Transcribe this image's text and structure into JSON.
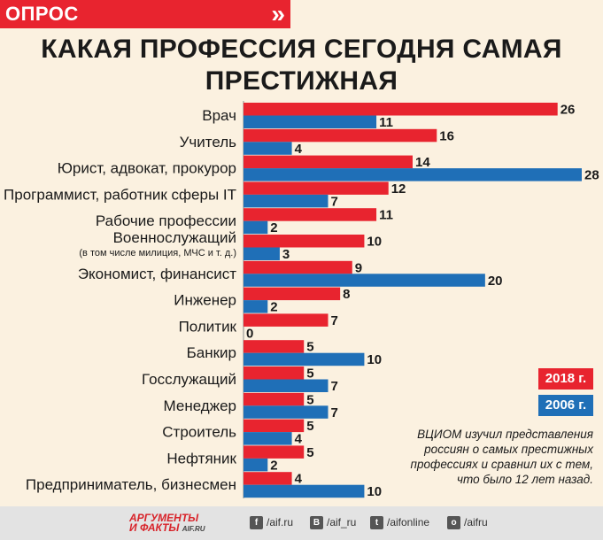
{
  "header": {
    "badge_label": "ОПРОС",
    "badge_arrow": "»"
  },
  "title_lines": [
    "КАКАЯ ПРОФЕССИЯ СЕГОДНЯ САМАЯ",
    "ПРЕСТИЖНАЯ"
  ],
  "legend": {
    "series_2018": "2018 г.",
    "series_2006": "2006 г."
  },
  "note": [
    "ВЦИОМ изучил представления",
    "россиян о самых престижных",
    "профессиях и сравнил их с тем,",
    "что было 12 лет назад."
  ],
  "footer": {
    "logo_line1": "АРГУМЕНТЫ",
    "logo_line2": "И ФАКТЫ",
    "logo_site": "AIF.RU",
    "links": [
      {
        "icon": "facebook-icon",
        "glyph": "f",
        "text": "/aif.ru"
      },
      {
        "icon": "vk-icon",
        "glyph": "В",
        "text": "/aif_ru"
      },
      {
        "icon": "twitter-icon",
        "glyph": "t",
        "text": "/aifonline"
      },
      {
        "icon": "odnoklassniki-icon",
        "glyph": "о",
        "text": "/aifru"
      }
    ]
  },
  "colors": {
    "red": "#e8242f",
    "blue": "#1f6fb7",
    "background": "#fbf1e0"
  },
  "chart_data": {
    "type": "bar",
    "orientation": "horizontal",
    "categories": [
      "Врач",
      "Учитель",
      "Юрист, адвокат, прокурор",
      "Программист, работник сферы IT",
      "Рабочие профессии",
      "Военнослужащий",
      "Экономист, финансист",
      "Инженер",
      "Политик",
      "Банкир",
      "Госслужащий",
      "Менеджер",
      "Строитель",
      "Нефтяник",
      "Предприниматель, бизнесмен"
    ],
    "category_notes": [
      "",
      "",
      "",
      "",
      "",
      "(в том числе милиция, МЧС и т. д.)",
      "",
      "",
      "",
      "",
      "",
      "",
      "",
      "",
      ""
    ],
    "series": [
      {
        "name": "2018 г.",
        "color": "#e8242f",
        "values": [
          26,
          16,
          14,
          12,
          11,
          10,
          9,
          8,
          7,
          5,
          5,
          5,
          5,
          5,
          4
        ]
      },
      {
        "name": "2006 г.",
        "color": "#1f6fb7",
        "values": [
          11,
          4,
          28,
          7,
          2,
          3,
          20,
          2,
          0,
          10,
          7,
          7,
          4,
          2,
          10
        ]
      }
    ],
    "xlim": [
      0,
      28
    ],
    "grid": false,
    "legend_position": "right"
  }
}
